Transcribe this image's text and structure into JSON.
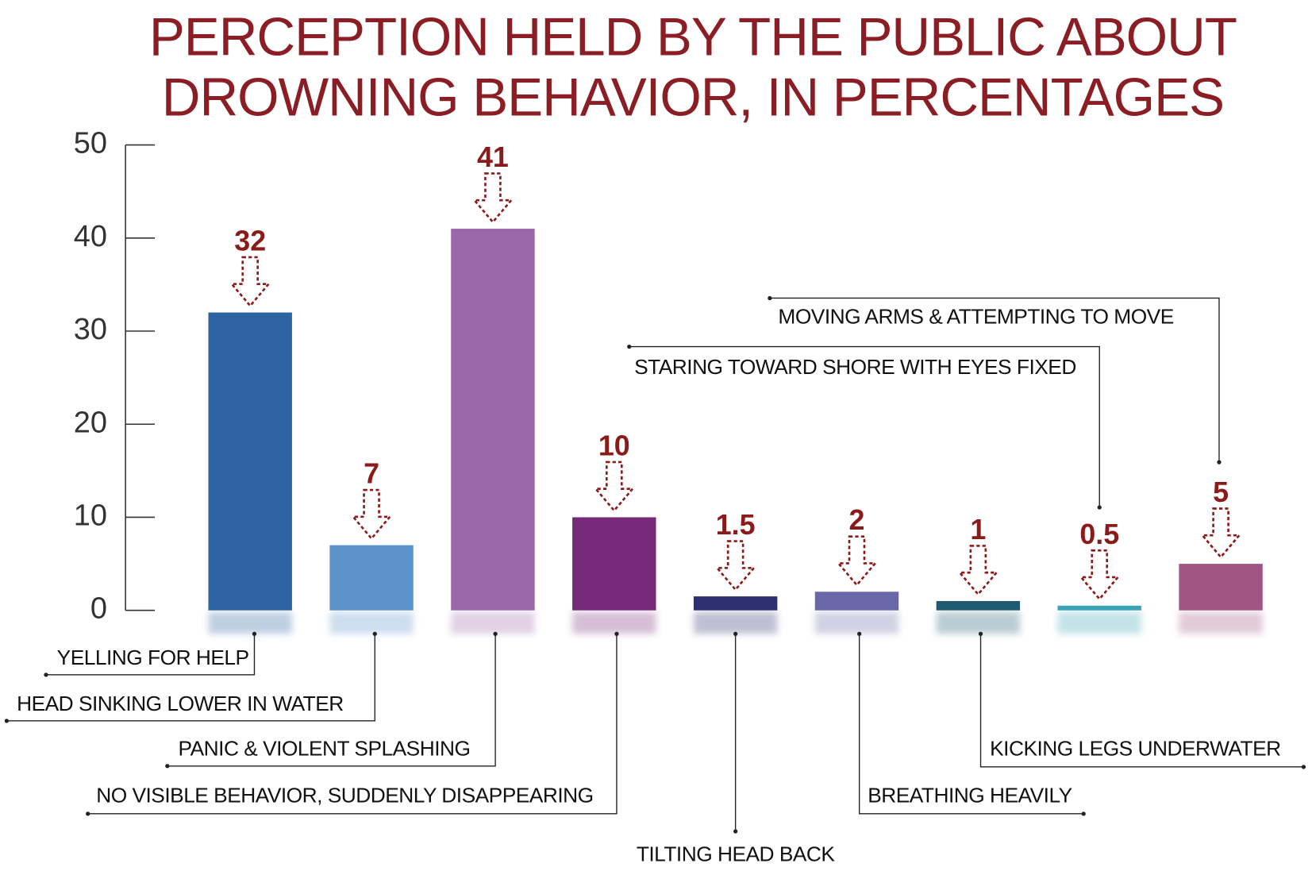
{
  "chart_data": {
    "type": "bar",
    "title": [
      "PERCEPTION HELD BY THE PUBLIC ABOUT",
      "DROWNING BEHAVIOR, IN PERCENTAGES"
    ],
    "categories": [
      "YELLING FOR HELP",
      "HEAD SINKING LOWER IN WATER",
      "PANIC & VIOLENT SPLASHING",
      "NO VISIBLE BEHAVIOR, SUDDENLY DISAPPEARING",
      "TILTING HEAD BACK",
      "BREATHING HEAVILY",
      "KICKING LEGS UNDERWATER",
      "STARING TOWARD SHORE WITH EYES FIXED",
      "MOVING ARMS & ATTEMPTING TO MOVE"
    ],
    "values": [
      32,
      7,
      41,
      10,
      1.5,
      2,
      1,
      0.5,
      5
    ],
    "colors": [
      "#2b64a0",
      "#5b93cc",
      "#9a68a9",
      "#77297a",
      "#2d2f70",
      "#6a67a8",
      "#1e5a70",
      "#3aa3b8",
      "#a15582"
    ],
    "ylim": [
      0,
      50
    ],
    "yticks": [
      0,
      10,
      20,
      30,
      40,
      50
    ]
  }
}
